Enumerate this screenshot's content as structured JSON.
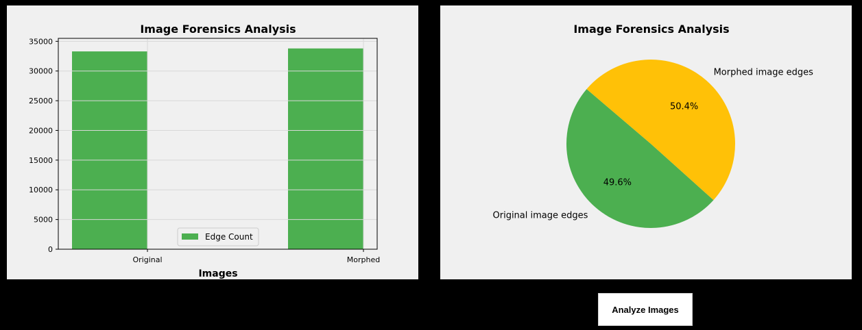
{
  "bar_chart": {
    "chart_data": {
      "type": "bar",
      "title": "Image Forensics Analysis",
      "xlabel": "Images",
      "ylabel": "",
      "categories": [
        "Original",
        "Morphed"
      ],
      "series": [
        {
          "name": "Edge Count",
          "values": [
            33300,
            33800
          ]
        }
      ],
      "ylim": [
        0,
        35500
      ],
      "yticks": [
        0,
        5000,
        10000,
        15000,
        20000,
        25000,
        30000,
        35000
      ],
      "grid": true,
      "legend": "lower-center",
      "bar_color": "#4caf50"
    }
  },
  "pie_chart": {
    "chart_data": {
      "type": "pie",
      "title": "Image Forensics Analysis",
      "labels": [
        "Original image edges",
        "Morphed image edges"
      ],
      "values": [
        49.6,
        50.4
      ],
      "value_labels": [
        "49.6%",
        "50.4%"
      ],
      "colors": [
        "#4caf50",
        "#ffc107"
      ]
    }
  },
  "analyze_button": {
    "label": "Analyze Images"
  }
}
